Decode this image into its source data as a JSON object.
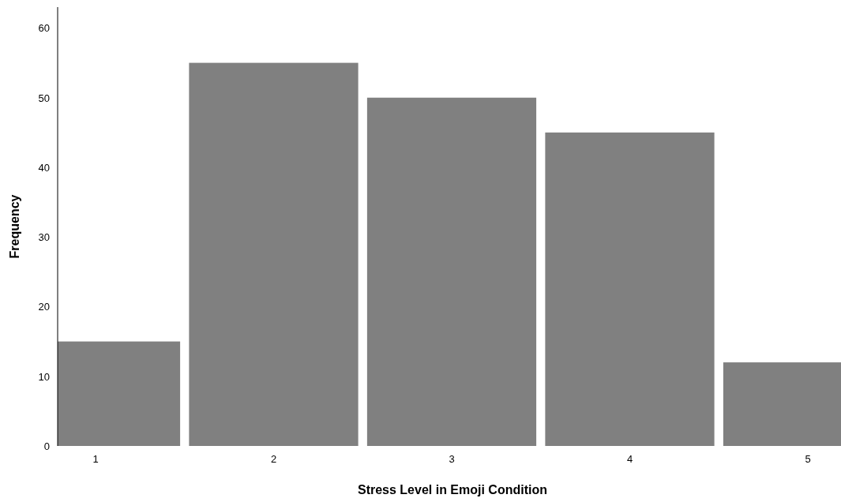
{
  "chart_data": {
    "type": "bar",
    "xlabel": "Stress Level in Emoji Condition",
    "ylabel": "Frequency",
    "categories": [
      "1",
      "2",
      "3",
      "4",
      "5"
    ],
    "values": [
      15,
      55,
      50,
      45,
      12
    ],
    "color": "#808080",
    "ylim": [
      0,
      63
    ],
    "yticks": [
      0,
      10,
      20,
      30,
      40,
      50,
      60
    ],
    "grid": false
  }
}
